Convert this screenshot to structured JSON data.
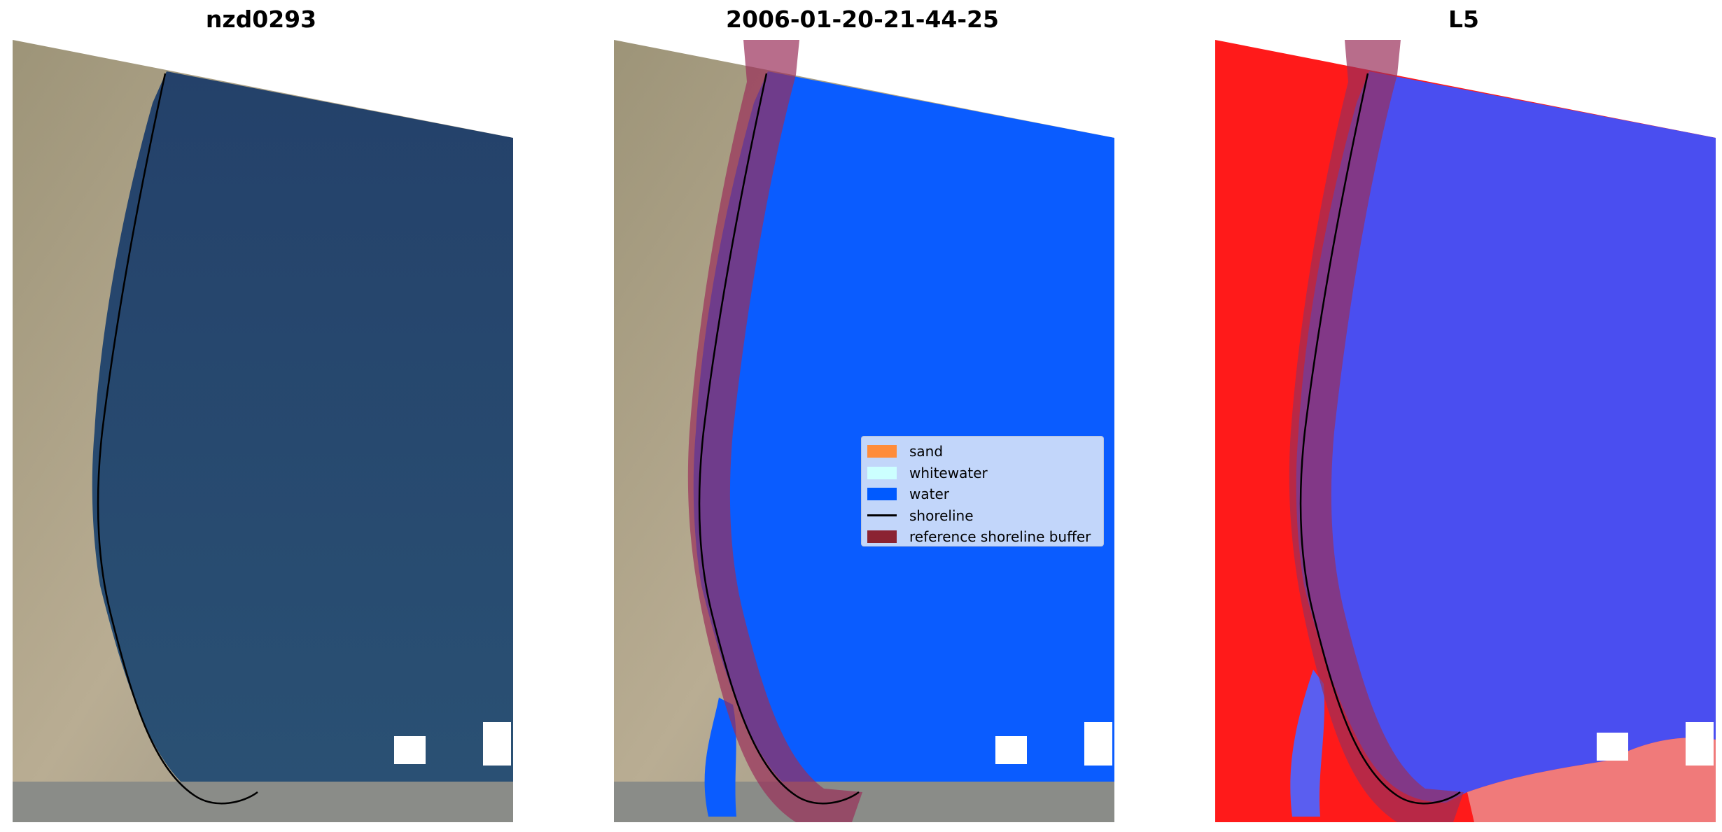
{
  "titles": {
    "panel1": "nzd0293",
    "panel2": "2006-01-20-21-44-25",
    "panel3": "L5"
  },
  "legend": {
    "placement": "center-right",
    "items": [
      {
        "label": "sand",
        "color": "#ff8c3a",
        "kind": "patch"
      },
      {
        "label": "whitewater",
        "color": "#ccffff",
        "kind": "patch"
      },
      {
        "label": "water",
        "color": "#005aff",
        "kind": "patch"
      },
      {
        "label": "shoreline",
        "color": "#000000",
        "kind": "line"
      },
      {
        "label": "reference shoreline buffer",
        "color": "#8b2332",
        "kind": "patch"
      }
    ]
  },
  "colors": {
    "land": "#b0a890",
    "sea_rgb": "#2a4d78",
    "water_class": "#0a5cff",
    "buffer": "#9a2f5a",
    "index_land": "#ff1a1a",
    "index_water": "#4a4ef0"
  }
}
